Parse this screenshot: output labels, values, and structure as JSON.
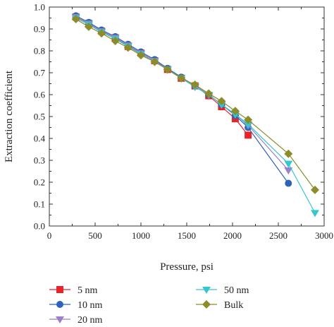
{
  "chart_data": {
    "type": "line",
    "xlabel": "Pressure, psi",
    "ylabel": "Extraction coefficient",
    "xlim": [
      0,
      3000
    ],
    "ylim": [
      0,
      1.0
    ],
    "x_ticks": [
      0,
      500,
      1000,
      1500,
      2000,
      2500,
      3000
    ],
    "y_ticks": [
      0,
      0.1,
      0.2,
      0.3,
      0.4,
      0.5,
      0.6,
      0.7,
      0.8,
      0.9,
      1.0
    ],
    "x_tick_labels": [
      "0",
      "500",
      "1000",
      "1500",
      "2000",
      "2500",
      "3000"
    ],
    "y_tick_labels": [
      "0.0",
      "0.1",
      "0.2",
      "0.3",
      "0.4",
      "0.5",
      "0.6",
      "0.7",
      "0.8",
      "0.9",
      "1.0"
    ],
    "grid": false,
    "legend_position": "bottom",
    "series": [
      {
        "name": "5 nm",
        "color": "#e8232a",
        "marker": "square",
        "x": [
          290,
          430,
          570,
          720,
          860,
          1000,
          1150,
          1290,
          1440,
          1590,
          1740,
          1880,
          2030,
          2170
        ],
        "y": [
          0.955,
          0.925,
          0.89,
          0.86,
          0.82,
          0.79,
          0.755,
          0.715,
          0.675,
          0.64,
          0.595,
          0.545,
          0.49,
          0.415
        ]
      },
      {
        "name": "10 nm",
        "color": "#2e64b8",
        "marker": "circle",
        "x": [
          290,
          430,
          570,
          720,
          860,
          1000,
          1150,
          1290,
          1440,
          1590,
          1740,
          1880,
          2030,
          2170,
          2610
        ],
        "y": [
          0.96,
          0.93,
          0.895,
          0.865,
          0.83,
          0.795,
          0.76,
          0.72,
          0.68,
          0.64,
          0.6,
          0.555,
          0.505,
          0.45,
          0.195
        ]
      },
      {
        "name": "20 nm",
        "color": "#9b7fcb",
        "marker": "triangle-down",
        "x": [
          290,
          430,
          570,
          720,
          860,
          1000,
          1150,
          1290,
          1440,
          1590,
          1740,
          1880,
          2030,
          2170,
          2610
        ],
        "y": [
          0.955,
          0.925,
          0.89,
          0.86,
          0.825,
          0.79,
          0.755,
          0.715,
          0.675,
          0.64,
          0.6,
          0.555,
          0.51,
          0.46,
          0.255
        ]
      },
      {
        "name": "50 nm",
        "color": "#35c7cf",
        "marker": "triangle-down",
        "x": [
          290,
          430,
          570,
          720,
          860,
          1000,
          1150,
          1290,
          1440,
          1590,
          1740,
          1880,
          2030,
          2170,
          2610,
          2900
        ],
        "y": [
          0.95,
          0.92,
          0.885,
          0.855,
          0.82,
          0.785,
          0.75,
          0.715,
          0.675,
          0.635,
          0.6,
          0.555,
          0.51,
          0.465,
          0.285,
          0.06
        ]
      },
      {
        "name": "Bulk",
        "color": "#8c8c2a",
        "marker": "diamond",
        "x": [
          290,
          430,
          570,
          720,
          860,
          1000,
          1150,
          1290,
          1440,
          1590,
          1740,
          1880,
          2030,
          2170,
          2610,
          2900
        ],
        "y": [
          0.945,
          0.91,
          0.88,
          0.845,
          0.815,
          0.78,
          0.75,
          0.715,
          0.675,
          0.645,
          0.605,
          0.57,
          0.525,
          0.485,
          0.33,
          0.165
        ]
      }
    ]
  }
}
